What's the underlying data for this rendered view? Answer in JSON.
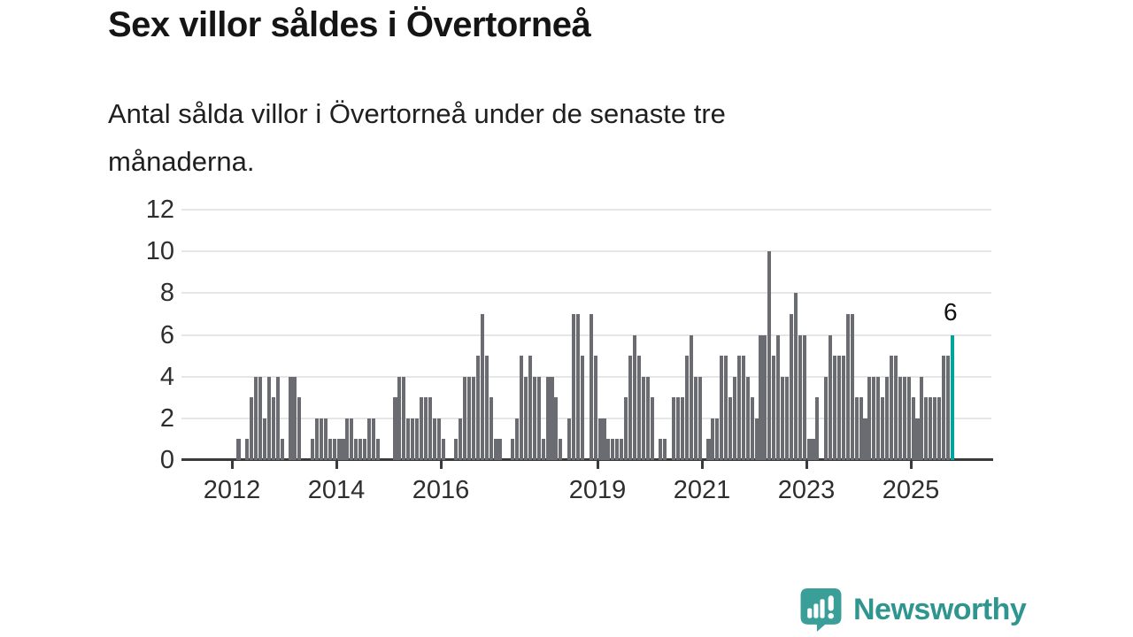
{
  "title": "Sex villor såldes i Övertorneå",
  "subtitle": "Antal sålda villor i Övertorneå under de senaste tre månaderna.",
  "annotation": {
    "value_label": "6"
  },
  "branding": {
    "name": "Newsworthy",
    "icon": "bar-chart-speech-bubble-icon"
  },
  "colors": {
    "bar": "#6b6b72",
    "highlight": "#00a49c",
    "brand_text": "#2f968f",
    "brand_icon": "#3a9f98",
    "axis": "#3a3a3c",
    "gridline": "#e6e6e6",
    "text": "#1a1a1a"
  },
  "chart_data": {
    "type": "bar",
    "x_unit": "month",
    "x_range": [
      "2012-01",
      "2025-10"
    ],
    "ylim": [
      0,
      12
    ],
    "y_ticks": [
      0,
      2,
      4,
      6,
      8,
      10,
      12
    ],
    "x_tick_years": [
      "2012",
      "2014",
      "2016",
      "2019",
      "2021",
      "2023",
      "2025"
    ],
    "grid": "horizontal",
    "legend": "none",
    "highlight_last_bar": {
      "value": 6,
      "label": "6"
    },
    "years": [
      {
        "year": "2012",
        "values": [
          0,
          1,
          0,
          1,
          3,
          4,
          4,
          2,
          4,
          3,
          4,
          1
        ]
      },
      {
        "year": "2013",
        "values": [
          0,
          4,
          4,
          3,
          0,
          0,
          1,
          2,
          2,
          2,
          1,
          1
        ]
      },
      {
        "year": "2014",
        "values": [
          1,
          1,
          2,
          2,
          1,
          1,
          1,
          2,
          2,
          1,
          0,
          0
        ]
      },
      {
        "year": "2015",
        "values": [
          0,
          3,
          4,
          4,
          2,
          2,
          2,
          3,
          3,
          3,
          2,
          2
        ]
      },
      {
        "year": "2016",
        "values": [
          1,
          0,
          0,
          1,
          2,
          4,
          4,
          4,
          5,
          7,
          5,
          3
        ]
      },
      {
        "year": "2017",
        "values": [
          1,
          1,
          0,
          0,
          1,
          2,
          5,
          4,
          5,
          4,
          4,
          1
        ]
      },
      {
        "year": "2018",
        "values": [
          4,
          4,
          3,
          1,
          0,
          2,
          7,
          7,
          5,
          0,
          7,
          5
        ]
      },
      {
        "year": "2019",
        "values": [
          2,
          2,
          1,
          1,
          1,
          1,
          3,
          5,
          6,
          5,
          4,
          4
        ]
      },
      {
        "year": "2020",
        "values": [
          3,
          0,
          1,
          1,
          0,
          3,
          3,
          3,
          5,
          6,
          4,
          4
        ]
      },
      {
        "year": "2021",
        "values": [
          0,
          1,
          2,
          2,
          5,
          5,
          3,
          4,
          5,
          5,
          4,
          3
        ]
      },
      {
        "year": "2022",
        "values": [
          2,
          6,
          6,
          10,
          5,
          6,
          4,
          4,
          7,
          8,
          6,
          6
        ]
      },
      {
        "year": "2023",
        "values": [
          1,
          1,
          3,
          0,
          4,
          6,
          5,
          5,
          5,
          7,
          7,
          3
        ]
      },
      {
        "year": "2024",
        "values": [
          3,
          2,
          4,
          4,
          4,
          3,
          4,
          5,
          5,
          4,
          4,
          4
        ]
      },
      {
        "year": "2025",
        "values": [
          3,
          2,
          4,
          3,
          3,
          3,
          3,
          5,
          5,
          6
        ]
      }
    ]
  }
}
